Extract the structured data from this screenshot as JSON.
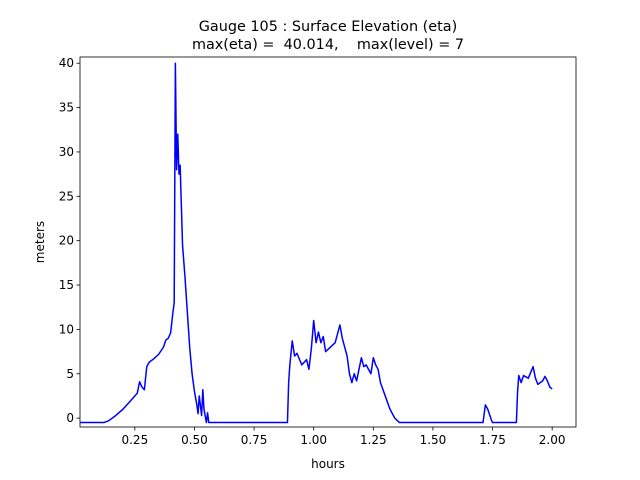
{
  "chart_data": {
    "type": "line",
    "title": [
      "Gauge 105 : Surface Elevation (eta)",
      "max(eta) =  40.014,    max(level) = 7"
    ],
    "xlabel": "hours",
    "ylabel": "meters",
    "xlim": [
      0.02,
      2.1
    ],
    "ylim": [
      -1.0,
      40.7
    ],
    "xticks": [
      0.25,
      {
        "value": 0.5,
        "label": "0.50"
      },
      0.75,
      {
        "value": 1.0,
        "label": "1.00"
      },
      1.25,
      {
        "value": 1.5,
        "label": "1.50"
      },
      1.75,
      {
        "value": 2.0,
        "label": "2.00"
      }
    ],
    "yticks": [
      0,
      5,
      10,
      15,
      20,
      25,
      30,
      35,
      40
    ],
    "grid": false,
    "series": [
      {
        "color": "#0000ff",
        "x": [
          0.02,
          0.12,
          0.14,
          0.17,
          0.2,
          0.24,
          0.26,
          0.27,
          0.28,
          0.29,
          0.3,
          0.31,
          0.33,
          0.35,
          0.37,
          0.38,
          0.39,
          0.4,
          0.41,
          0.415,
          0.42,
          0.425,
          0.43,
          0.435,
          0.44,
          0.445,
          0.45,
          0.46,
          0.47,
          0.48,
          0.49,
          0.5,
          0.51,
          0.515,
          0.52,
          0.53,
          0.535,
          0.54,
          0.55,
          0.555,
          0.56,
          0.89,
          0.895,
          0.9,
          0.91,
          0.92,
          0.93,
          0.95,
          0.97,
          0.98,
          0.99,
          1.0,
          1.01,
          1.02,
          1.03,
          1.04,
          1.05,
          1.07,
          1.09,
          1.11,
          1.12,
          1.14,
          1.15,
          1.16,
          1.17,
          1.18,
          1.19,
          1.2,
          1.21,
          1.22,
          1.24,
          1.25,
          1.26,
          1.27,
          1.28,
          1.3,
          1.32,
          1.34,
          1.36,
          1.71,
          1.72,
          1.73,
          1.745,
          1.75,
          1.85,
          1.855,
          1.86,
          1.87,
          1.88,
          1.9,
          1.92,
          1.93,
          1.94,
          1.96,
          1.97,
          1.98,
          1.99,
          2.0
        ],
        "values": [
          -0.5,
          -0.5,
          -0.3,
          0.3,
          1.0,
          2.2,
          2.8,
          4.1,
          3.5,
          3.2,
          5.8,
          6.3,
          6.7,
          7.2,
          8.0,
          8.8,
          9.0,
          9.6,
          12,
          13,
          40.0,
          28,
          32,
          27.5,
          28.5,
          24,
          19.5,
          16,
          12,
          8,
          5,
          3,
          1.5,
          0.5,
          2.5,
          0.3,
          3.2,
          1,
          -0.5,
          0.6,
          -0.5,
          -0.5,
          4,
          6,
          8.7,
          7,
          7.3,
          6,
          6.6,
          5.5,
          7.8,
          11,
          8.5,
          9.7,
          8.5,
          9.2,
          7.5,
          8,
          8.5,
          10.5,
          9,
          7,
          5,
          4,
          5,
          4.2,
          5.5,
          6.8,
          5.8,
          6,
          5,
          6.8,
          6,
          5.5,
          4,
          2.5,
          1,
          0,
          -0.5,
          -0.5,
          1.5,
          1,
          -0.2,
          -0.5,
          -0.5,
          3,
          4.8,
          4,
          4.8,
          4.5,
          5.8,
          4.5,
          3.8,
          4.2,
          4.7,
          4.2,
          3.5,
          3.3
        ]
      }
    ]
  }
}
